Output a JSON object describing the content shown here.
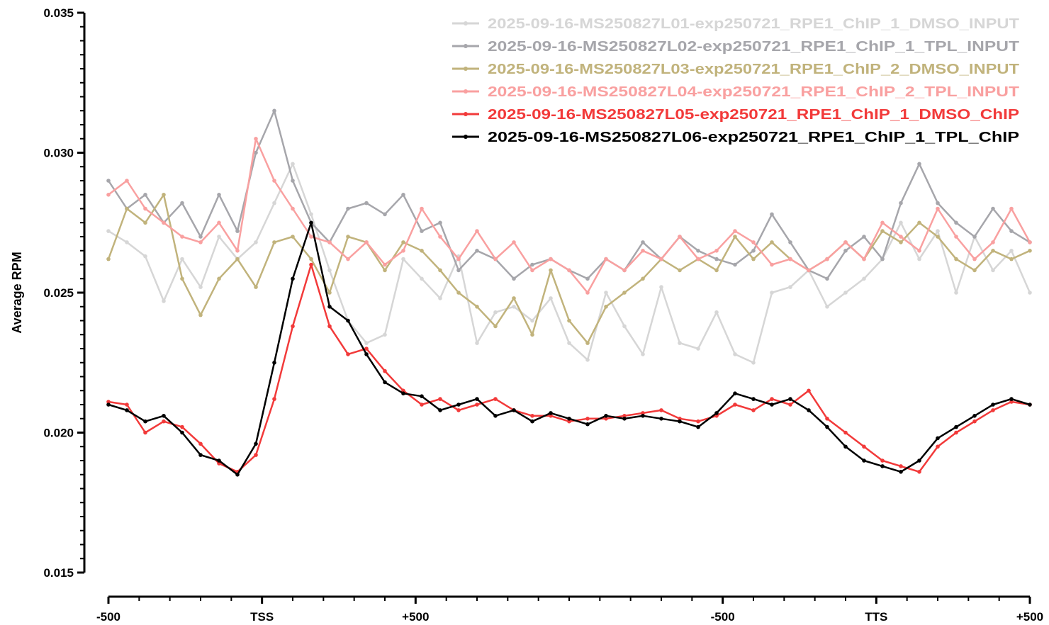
{
  "chart_data": {
    "type": "line",
    "title": "",
    "xlabel": "",
    "ylabel": "Average RPM",
    "ylim": [
      0.015,
      0.035
    ],
    "yticks": [
      "0.015",
      "0.020",
      "0.025",
      "0.030",
      "0.035"
    ],
    "xticks": [
      "-500",
      "TSS",
      "+500",
      "-500",
      "TTS",
      "+500"
    ],
    "legend_position": "top-right",
    "series": [
      {
        "name": "2025-09-16-MS250827L01-exp250721_RPE1_ChIP_1_DMSO_INPUT",
        "color": "#d6d6d6",
        "x": [
          0,
          2,
          4,
          6,
          8,
          10,
          12,
          14,
          16,
          18,
          20,
          22,
          24,
          26,
          28,
          30,
          32,
          34,
          36,
          38,
          40,
          42,
          44,
          46,
          48,
          50,
          52,
          54,
          56,
          58,
          60,
          62,
          64,
          66,
          68,
          70,
          72,
          74,
          76,
          78,
          80,
          82,
          84,
          86,
          88,
          90,
          92,
          94,
          96,
          98,
          100
        ],
        "values": [
          0.0272,
          0.0268,
          0.0263,
          0.0247,
          0.0262,
          0.0252,
          0.027,
          0.0262,
          0.0268,
          0.0282,
          0.0296,
          0.0278,
          0.0258,
          0.024,
          0.0232,
          0.0235,
          0.0262,
          0.0255,
          0.0248,
          0.0263,
          0.0232,
          0.0243,
          0.0245,
          0.024,
          0.0248,
          0.0232,
          0.0226,
          0.025,
          0.0238,
          0.0228,
          0.0252,
          0.0232,
          0.023,
          0.0243,
          0.0228,
          0.0225,
          0.025,
          0.0252,
          0.0258,
          0.0245,
          0.025,
          0.0255,
          0.0262,
          0.0275,
          0.0262,
          0.0272,
          0.025,
          0.027,
          0.0258,
          0.0265,
          0.025
        ]
      },
      {
        "name": "2025-09-16-MS250827L02-exp250721_RPE1_ChIP_1_TPL_INPUT",
        "color": "#a6a6ab",
        "x": [
          0,
          2,
          4,
          6,
          8,
          10,
          12,
          14,
          16,
          18,
          20,
          22,
          24,
          26,
          28,
          30,
          32,
          34,
          36,
          38,
          40,
          42,
          44,
          46,
          48,
          50,
          52,
          54,
          56,
          58,
          60,
          62,
          64,
          66,
          68,
          70,
          72,
          74,
          76,
          78,
          80,
          82,
          84,
          86,
          88,
          90,
          92,
          94,
          96,
          98,
          100
        ],
        "values": [
          0.029,
          0.028,
          0.0285,
          0.0275,
          0.0282,
          0.027,
          0.0285,
          0.0272,
          0.03,
          0.0315,
          0.029,
          0.0275,
          0.0268,
          0.028,
          0.0282,
          0.0278,
          0.0285,
          0.0272,
          0.0275,
          0.0258,
          0.0265,
          0.0262,
          0.0255,
          0.026,
          0.0262,
          0.0258,
          0.0255,
          0.0262,
          0.0258,
          0.0268,
          0.0262,
          0.027,
          0.0265,
          0.0262,
          0.026,
          0.0265,
          0.0278,
          0.0268,
          0.0258,
          0.0255,
          0.0265,
          0.027,
          0.0262,
          0.0282,
          0.0296,
          0.0282,
          0.0275,
          0.027,
          0.028,
          0.0272,
          0.0268
        ]
      },
      {
        "name": "2025-09-16-MS250827L03-exp250721_RPE1_ChIP_2_DMSO_INPUT",
        "color": "#c1b37c",
        "x": [
          0,
          2,
          4,
          6,
          8,
          10,
          12,
          14,
          16,
          18,
          20,
          22,
          24,
          26,
          28,
          30,
          32,
          34,
          36,
          38,
          40,
          42,
          44,
          46,
          48,
          50,
          52,
          54,
          56,
          58,
          60,
          62,
          64,
          66,
          68,
          70,
          72,
          74,
          76,
          78,
          80,
          82,
          84,
          86,
          88,
          90,
          92,
          94,
          96,
          98,
          100
        ],
        "values": [
          0.0262,
          0.028,
          0.0275,
          0.0285,
          0.0255,
          0.0242,
          0.0255,
          0.0262,
          0.0252,
          0.0268,
          0.027,
          0.0262,
          0.025,
          0.027,
          0.0268,
          0.0258,
          0.0268,
          0.0265,
          0.0258,
          0.025,
          0.0245,
          0.0238,
          0.0248,
          0.0235,
          0.0258,
          0.024,
          0.0232,
          0.0245,
          0.025,
          0.0255,
          0.0262,
          0.0258,
          0.0262,
          0.0258,
          0.027,
          0.0262,
          0.0268,
          0.0262,
          0.0258,
          0.0262,
          0.0268,
          0.0262,
          0.0272,
          0.0268,
          0.0275,
          0.027,
          0.0262,
          0.0258,
          0.0265,
          0.0262,
          0.0265
        ]
      },
      {
        "name": "2025-09-16-MS250827L04-exp250721_RPE1_ChIP_2_TPL_INPUT",
        "color": "#f9a0a0",
        "x": [
          0,
          2,
          4,
          6,
          8,
          10,
          12,
          14,
          16,
          18,
          20,
          22,
          24,
          26,
          28,
          30,
          32,
          34,
          36,
          38,
          40,
          42,
          44,
          46,
          48,
          50,
          52,
          54,
          56,
          58,
          60,
          62,
          64,
          66,
          68,
          70,
          72,
          74,
          76,
          78,
          80,
          82,
          84,
          86,
          88,
          90,
          92,
          94,
          96,
          98,
          100
        ],
        "values": [
          0.0285,
          0.029,
          0.028,
          0.0275,
          0.027,
          0.0268,
          0.0275,
          0.0265,
          0.0305,
          0.029,
          0.028,
          0.027,
          0.0268,
          0.0262,
          0.0268,
          0.026,
          0.0265,
          0.028,
          0.027,
          0.0262,
          0.0272,
          0.0262,
          0.0268,
          0.0258,
          0.0262,
          0.0258,
          0.025,
          0.0262,
          0.0258,
          0.0265,
          0.0262,
          0.027,
          0.0262,
          0.0265,
          0.0272,
          0.0268,
          0.026,
          0.0262,
          0.0258,
          0.0262,
          0.0268,
          0.0262,
          0.0275,
          0.027,
          0.0265,
          0.028,
          0.027,
          0.0262,
          0.0268,
          0.028,
          0.0268
        ]
      },
      {
        "name": "2025-09-16-MS250827L05-exp250721_RPE1_ChIP_1_DMSO_ChIP",
        "color": "#f23a3a",
        "x": [
          0,
          2,
          4,
          6,
          8,
          10,
          12,
          14,
          16,
          18,
          20,
          22,
          24,
          26,
          28,
          30,
          32,
          34,
          36,
          38,
          40,
          42,
          44,
          46,
          48,
          50,
          52,
          54,
          56,
          58,
          60,
          62,
          64,
          66,
          68,
          70,
          72,
          74,
          76,
          78,
          80,
          82,
          84,
          86,
          88,
          90,
          92,
          94,
          96,
          98,
          100
        ],
        "values": [
          0.0211,
          0.021,
          0.02,
          0.0204,
          0.0202,
          0.0196,
          0.0189,
          0.0186,
          0.0192,
          0.0212,
          0.0238,
          0.026,
          0.0238,
          0.0228,
          0.023,
          0.0222,
          0.0215,
          0.021,
          0.0212,
          0.0208,
          0.021,
          0.0212,
          0.0208,
          0.0206,
          0.0206,
          0.0204,
          0.0205,
          0.0205,
          0.0206,
          0.0207,
          0.0208,
          0.0205,
          0.0204,
          0.0206,
          0.021,
          0.0208,
          0.0212,
          0.021,
          0.0215,
          0.0205,
          0.02,
          0.0195,
          0.019,
          0.0188,
          0.0186,
          0.0195,
          0.02,
          0.0204,
          0.0208,
          0.0211,
          0.021
        ]
      },
      {
        "name": "2025-09-16-MS250827L06-exp250721_RPE1_ChIP_1_TPL_ChIP",
        "color": "#000000",
        "x": [
          0,
          2,
          4,
          6,
          8,
          10,
          12,
          14,
          16,
          18,
          20,
          22,
          24,
          26,
          28,
          30,
          32,
          34,
          36,
          38,
          40,
          42,
          44,
          46,
          48,
          50,
          52,
          54,
          56,
          58,
          60,
          62,
          64,
          66,
          68,
          70,
          72,
          74,
          76,
          78,
          80,
          82,
          84,
          86,
          88,
          90,
          92,
          94,
          96,
          98,
          100
        ],
        "values": [
          0.021,
          0.0208,
          0.0204,
          0.0206,
          0.02,
          0.0192,
          0.019,
          0.0185,
          0.0196,
          0.0225,
          0.0255,
          0.0275,
          0.0245,
          0.024,
          0.0228,
          0.0218,
          0.0214,
          0.0213,
          0.0208,
          0.021,
          0.0212,
          0.0206,
          0.0208,
          0.0204,
          0.0207,
          0.0205,
          0.0203,
          0.0206,
          0.0205,
          0.0206,
          0.0205,
          0.0204,
          0.0202,
          0.0207,
          0.0214,
          0.0212,
          0.021,
          0.0212,
          0.0208,
          0.0202,
          0.0195,
          0.019,
          0.0188,
          0.0186,
          0.019,
          0.0198,
          0.0202,
          0.0206,
          0.021,
          0.0212,
          0.021
        ]
      }
    ]
  }
}
